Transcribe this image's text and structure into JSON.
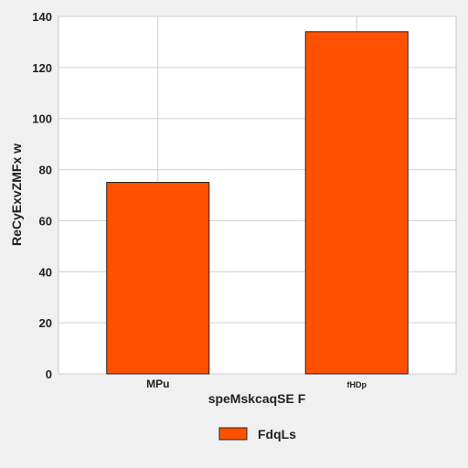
{
  "chart_data": {
    "type": "bar",
    "categories": [
      "MPu",
      "fHDp"
    ],
    "series": [
      {
        "name": "FdqLs",
        "values": [
          75,
          134
        ],
        "color": "#ff5000"
      }
    ],
    "xlabel": "speMskcaqSE F",
    "ylabel": "ReCyExvZMFx w",
    "ylim": [
      0,
      140
    ],
    "yticks": [
      0,
      20,
      40,
      60,
      80,
      100,
      120,
      140
    ],
    "grid": true,
    "legend_position": "bottom-center",
    "colors": {
      "bar": "#ff5000",
      "plot_bg": "#ffffff",
      "page_bg": "#f0f0f0",
      "grid": "#d0d0d0"
    }
  }
}
